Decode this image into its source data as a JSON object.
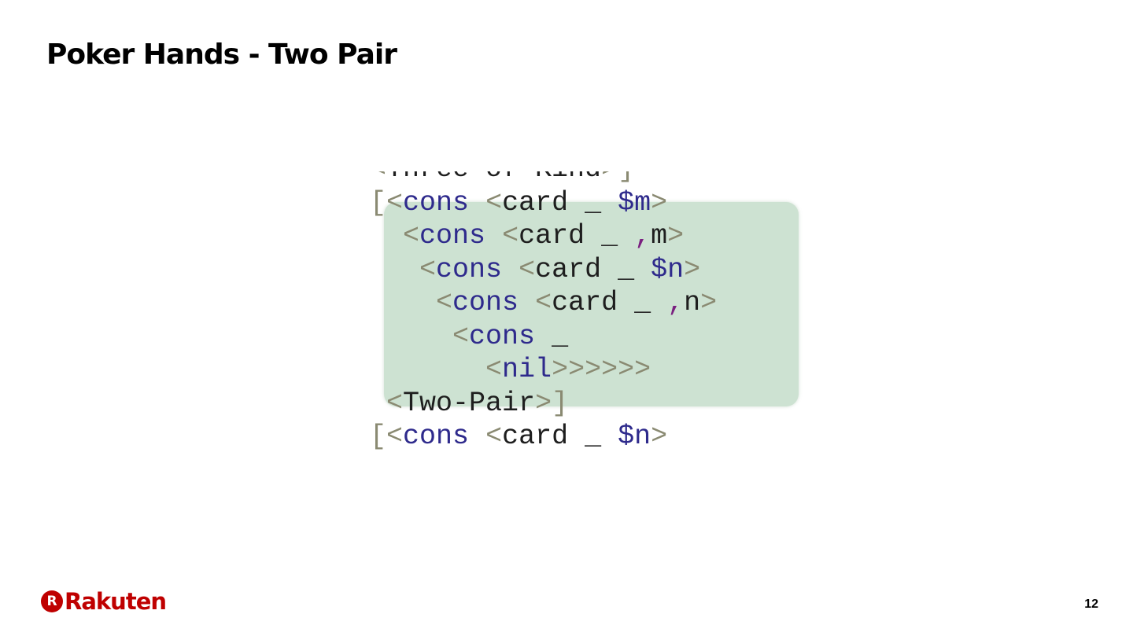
{
  "slide": {
    "title": "Poker Hands - Two Pair",
    "page_number": "12"
  },
  "brand": {
    "logo_mark": "R",
    "logo_text": "Rakuten",
    "color": "#bf0000"
  },
  "code": {
    "highlight_color": "#cde2d2",
    "lines": [
      [
        {
          "t": "<",
          "c": "br"
        },
        {
          "t": "Three-of-Kind",
          "c": "tx"
        },
        {
          "t": ">",
          "c": "br"
        },
        {
          "t": "]",
          "c": "br"
        }
      ],
      [
        {
          "t": "[",
          "c": "br"
        },
        {
          "t": "<",
          "c": "br"
        },
        {
          "t": "cons",
          "c": "kw"
        },
        {
          "t": " ",
          "c": "tx"
        },
        {
          "t": "<",
          "c": "br"
        },
        {
          "t": "card",
          "c": "tx"
        },
        {
          "t": " ",
          "c": "tx"
        },
        {
          "t": "_",
          "c": "us"
        },
        {
          "t": " ",
          "c": "tx"
        },
        {
          "t": "$m",
          "c": "vr"
        },
        {
          "t": ">",
          "c": "br"
        }
      ],
      [
        {
          "t": "  ",
          "c": "tx"
        },
        {
          "t": "<",
          "c": "br"
        },
        {
          "t": "cons",
          "c": "kw"
        },
        {
          "t": " ",
          "c": "tx"
        },
        {
          "t": "<",
          "c": "br"
        },
        {
          "t": "card",
          "c": "tx"
        },
        {
          "t": " ",
          "c": "tx"
        },
        {
          "t": "_",
          "c": "us"
        },
        {
          "t": " ",
          "c": "tx"
        },
        {
          "t": ",",
          "c": "cm"
        },
        {
          "t": "m",
          "c": "tx"
        },
        {
          "t": ">",
          "c": "br"
        }
      ],
      [
        {
          "t": "   ",
          "c": "tx"
        },
        {
          "t": "<",
          "c": "br"
        },
        {
          "t": "cons",
          "c": "kw"
        },
        {
          "t": " ",
          "c": "tx"
        },
        {
          "t": "<",
          "c": "br"
        },
        {
          "t": "card",
          "c": "tx"
        },
        {
          "t": " ",
          "c": "tx"
        },
        {
          "t": "_",
          "c": "us"
        },
        {
          "t": " ",
          "c": "tx"
        },
        {
          "t": "$n",
          "c": "vr"
        },
        {
          "t": ">",
          "c": "br"
        }
      ],
      [
        {
          "t": "    ",
          "c": "tx"
        },
        {
          "t": "<",
          "c": "br"
        },
        {
          "t": "cons",
          "c": "kw"
        },
        {
          "t": " ",
          "c": "tx"
        },
        {
          "t": "<",
          "c": "br"
        },
        {
          "t": "card",
          "c": "tx"
        },
        {
          "t": " ",
          "c": "tx"
        },
        {
          "t": "_",
          "c": "us"
        },
        {
          "t": " ",
          "c": "tx"
        },
        {
          "t": ",",
          "c": "cm"
        },
        {
          "t": "n",
          "c": "tx"
        },
        {
          "t": ">",
          "c": "br"
        }
      ],
      [
        {
          "t": "     ",
          "c": "tx"
        },
        {
          "t": "<",
          "c": "br"
        },
        {
          "t": "cons",
          "c": "kw"
        },
        {
          "t": " ",
          "c": "tx"
        },
        {
          "t": "_",
          "c": "us"
        }
      ],
      [
        {
          "t": "       ",
          "c": "tx"
        },
        {
          "t": "<",
          "c": "br"
        },
        {
          "t": "nil",
          "c": "kw"
        },
        {
          "t": ">>>>>>",
          "c": "br"
        }
      ],
      [
        {
          "t": " ",
          "c": "tx"
        },
        {
          "t": "<",
          "c": "br"
        },
        {
          "t": "Two-Pair",
          "c": "tx"
        },
        {
          "t": ">",
          "c": "br"
        },
        {
          "t": "]",
          "c": "br"
        }
      ],
      [
        {
          "t": "[",
          "c": "br"
        },
        {
          "t": "<",
          "c": "br"
        },
        {
          "t": "cons",
          "c": "kw"
        },
        {
          "t": " ",
          "c": "tx"
        },
        {
          "t": "<",
          "c": "br"
        },
        {
          "t": "card",
          "c": "tx"
        },
        {
          "t": " ",
          "c": "tx"
        },
        {
          "t": "_",
          "c": "us"
        },
        {
          "t": " ",
          "c": "tx"
        },
        {
          "t": "$n",
          "c": "vr"
        },
        {
          "t": ">",
          "c": "br"
        }
      ]
    ]
  }
}
